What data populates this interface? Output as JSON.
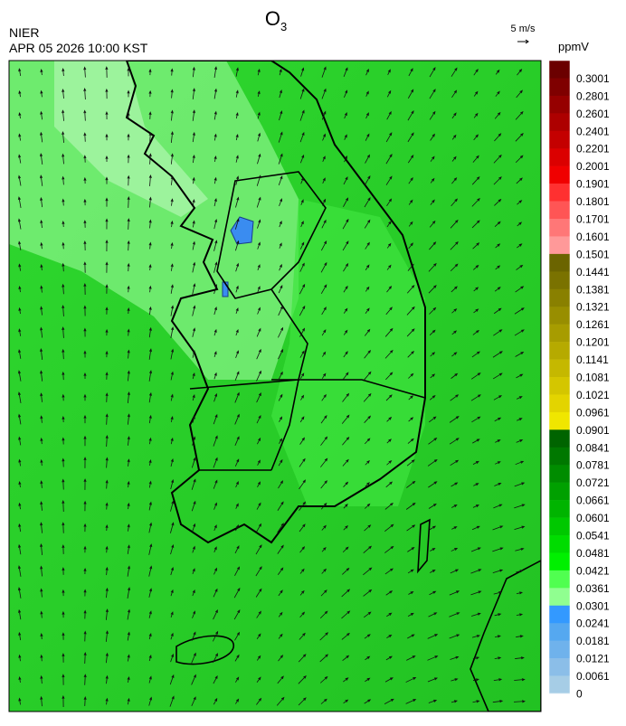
{
  "header": {
    "title": {
      "base": "O",
      "subscript": "3"
    },
    "agency": "NIER",
    "timestamp": "APR 05 2026 10:00 KST",
    "wind_scale": "5 m/s"
  },
  "colorbar": {
    "unit": "ppmV",
    "labels": [
      "0.3001",
      "0.2801",
      "0.2601",
      "0.2401",
      "0.2201",
      "0.2001",
      "0.1901",
      "0.1801",
      "0.1701",
      "0.1601",
      "0.1501",
      "0.1441",
      "0.1381",
      "0.1321",
      "0.1261",
      "0.1201",
      "0.1141",
      "0.1081",
      "0.1021",
      "0.0961",
      "0.0901",
      "0.0841",
      "0.0781",
      "0.0721",
      "0.0661",
      "0.0601",
      "0.0541",
      "0.0481",
      "0.0421",
      "0.0361",
      "0.0301",
      "0.0241",
      "0.0181",
      "0.0121",
      "0.0061",
      "0"
    ],
    "colors": [
      "#6b0000",
      "#7f0000",
      "#960000",
      "#ad0000",
      "#c40000",
      "#db0000",
      "#f00000",
      "#ff3030",
      "#ff5555",
      "#ff7777",
      "#ff9999",
      "#6b6400",
      "#7a7200",
      "#898000",
      "#988e00",
      "#a79c00",
      "#b6aa00",
      "#c5b800",
      "#d4c600",
      "#e3d400",
      "#f0e600",
      "#006400",
      "#007800",
      "#008c00",
      "#00a000",
      "#00b400",
      "#00c800",
      "#00dc00",
      "#00f000",
      "#50ff50",
      "#90ff90",
      "#3399ff",
      "#55a8f0",
      "#6fb2ec",
      "#8bbee8",
      "#a6cde6"
    ]
  }
}
